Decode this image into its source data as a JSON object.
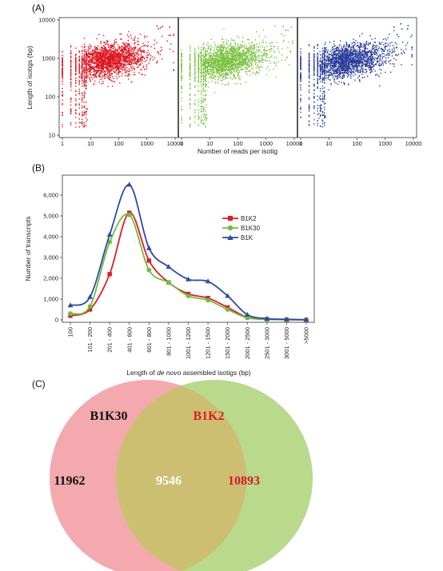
{
  "panels": {
    "a_label": "(A)",
    "b_label": "(B)",
    "c_label": "(C)"
  },
  "chart_data": [
    {
      "type": "scatter",
      "panel": "(A)",
      "facets": 3,
      "xscale": "log",
      "yscale": "log",
      "xlabel": "Number of reads per isotig",
      "ylabel": "Length of isotigs (bp)",
      "xlim": [
        1,
        10000
      ],
      "ylim": [
        10,
        10000
      ],
      "x_ticks": [
        "1",
        "10",
        "100",
        "1000",
        "10000"
      ],
      "y_ticks": [
        "10",
        "100",
        "1000",
        "10000"
      ],
      "series": [
        {
          "color": "#e0141e",
          "distribution": "dense cloud, length ~300-3000 bp centered ~1000 bp, reads 1-~8000"
        },
        {
          "color": "#7cc242",
          "distribution": "dense cloud, length ~300-4000 bp centered ~1000 bp, reads 1-~9000"
        },
        {
          "color": "#2b3c9a",
          "distribution": "dense cloud, length ~300-4000 bp centered ~1000 bp, reads 1-~10000"
        }
      ]
    },
    {
      "type": "line",
      "panel": "(B)",
      "xlabel_parts": [
        "Length of ",
        "de novo",
        " assembled isotigs (bp)"
      ],
      "ylabel": "Number of transcripts",
      "categories": [
        "100",
        "101 - 200",
        "201 - 400",
        "401 - 600",
        "601 - 800",
        "801 - 1000",
        "1001 - 1200",
        "1201 - 1500",
        "1501 - 2000",
        "2001 - 2500",
        "2501 - 3000",
        "3001 - 5000",
        ">5000"
      ],
      "y_ticks": [
        "0",
        "1,000",
        "2,000",
        "3,000",
        "4,000",
        "5,000",
        "6,000"
      ],
      "ylim": [
        0,
        6800
      ],
      "legend_position": "right",
      "series": [
        {
          "name": "B1K2",
          "color": "#e31b23",
          "marker": "square",
          "values": [
            200,
            500,
            2200,
            5150,
            2850,
            1800,
            1250,
            1050,
            600,
            120,
            30,
            10,
            0
          ]
        },
        {
          "name": "B1K30",
          "color": "#6cbf3a",
          "marker": "circle",
          "values": [
            300,
            650,
            3750,
            5050,
            2400,
            1800,
            1150,
            950,
            500,
            100,
            20,
            10,
            0
          ]
        },
        {
          "name": "B1K",
          "color": "#2e4aa8",
          "marker": "triangle",
          "values": [
            700,
            1100,
            4100,
            6500,
            3450,
            2550,
            1950,
            1850,
            1150,
            250,
            60,
            30,
            10
          ]
        }
      ]
    }
  ],
  "venn": {
    "left_label": "B1K30",
    "right_label": "B1K2",
    "left_only": "11962",
    "overlap": "9546",
    "right_only": "10893",
    "left_fill": "#f3a9ae",
    "right_fill": "#b9d98c",
    "overlap_fill": "#cdbf72",
    "left_label_color": "#111111",
    "right_label_color": "#e31b23",
    "overlap_text_color": "#ffffff"
  }
}
